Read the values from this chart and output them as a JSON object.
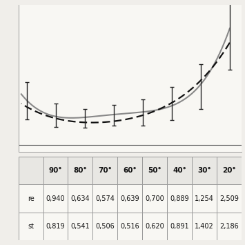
{
  "x_labels": [
    "90°",
    "80°",
    "70°",
    "60°",
    "50°",
    "40°",
    "30°",
    "20°"
  ],
  "x_values": [
    90,
    80,
    70,
    60,
    50,
    40,
    30,
    20
  ],
  "pre_values": [
    0.94,
    0.634,
    0.574,
    0.639,
    0.7,
    0.889,
    1.254,
    2.509
  ],
  "post_values": [
    0.819,
    0.541,
    0.506,
    0.516,
    0.62,
    0.891,
    1.402,
    2.186
  ],
  "errors": [
    0.4,
    0.25,
    0.2,
    0.22,
    0.28,
    0.35,
    0.48,
    0.9
  ],
  "table_row1_label": "re",
  "table_row2_label": "st",
  "bg_color": "#f0eeea",
  "plot_bg": "#f8f7f3",
  "line_gray_color": "#888888",
  "line_black_color": "#111111",
  "err_color": "#222222",
  "zero_line_color": "#555555",
  "spine_color": "#999999",
  "table_border_color": "#999999",
  "table_fs": 7.0,
  "header_fs": 7.5
}
